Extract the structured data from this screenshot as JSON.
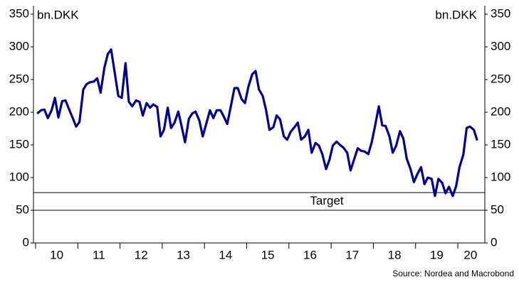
{
  "chart_data": {
    "type": "line",
    "y_label": "bn.DKK",
    "y2_label": "bn.DKK",
    "annotation": "Target",
    "reference_lines": [
      77,
      50
    ],
    "source": "Source: Nordea and Macrobond",
    "xlim": [
      2009.95,
      2020.64
    ],
    "xticks": [
      {
        "value": 2010.5,
        "label": "10"
      },
      {
        "value": 2011.5,
        "label": "11"
      },
      {
        "value": 2012.5,
        "label": "12"
      },
      {
        "value": 2013.5,
        "label": "13"
      },
      {
        "value": 2014.5,
        "label": "14"
      },
      {
        "value": 2015.5,
        "label": "15"
      },
      {
        "value": 2016.5,
        "label": "16"
      },
      {
        "value": 2017.5,
        "label": "17"
      },
      {
        "value": 2018.5,
        "label": "18"
      },
      {
        "value": 2019.5,
        "label": "19"
      },
      {
        "value": 2020.3,
        "label": "20"
      }
    ],
    "ylim": [
      0,
      350
    ],
    "yticks": [
      0,
      50,
      100,
      150,
      200,
      250,
      300,
      350
    ],
    "y2lim": [
      0,
      350
    ],
    "y2ticks": [
      0,
      50,
      100,
      150,
      200,
      250,
      300,
      350
    ],
    "grid": false,
    "x": [
      2010.04,
      2010.13,
      2010.21,
      2010.29,
      2010.38,
      2010.46,
      2010.54,
      2010.63,
      2010.71,
      2010.79,
      2010.88,
      2010.96,
      2011.04,
      2011.13,
      2011.21,
      2011.29,
      2011.38,
      2011.46,
      2011.54,
      2011.63,
      2011.71,
      2011.79,
      2011.88,
      2011.96,
      2012.04,
      2012.13,
      2012.21,
      2012.29,
      2012.38,
      2012.46,
      2012.54,
      2012.63,
      2012.71,
      2012.79,
      2012.88,
      2012.96,
      2013.04,
      2013.13,
      2013.21,
      2013.29,
      2013.38,
      2013.46,
      2013.54,
      2013.63,
      2013.71,
      2013.79,
      2013.88,
      2013.96,
      2014.04,
      2014.13,
      2014.21,
      2014.29,
      2014.38,
      2014.46,
      2014.54,
      2014.63,
      2014.71,
      2014.79,
      2014.88,
      2014.96,
      2015.04,
      2015.13,
      2015.21,
      2015.29,
      2015.38,
      2015.46,
      2015.54,
      2015.63,
      2015.71,
      2015.79,
      2015.88,
      2015.96,
      2016.04,
      2016.13,
      2016.21,
      2016.29,
      2016.38,
      2016.46,
      2016.54,
      2016.63,
      2016.71,
      2016.79,
      2016.88,
      2016.96,
      2017.04,
      2017.13,
      2017.21,
      2017.29,
      2017.38,
      2017.46,
      2017.54,
      2017.63,
      2017.71,
      2017.79,
      2017.88,
      2017.96,
      2018.04,
      2018.13,
      2018.21,
      2018.29,
      2018.38,
      2018.46,
      2018.54,
      2018.63,
      2018.71,
      2018.79,
      2018.88,
      2018.96,
      2019.04,
      2019.13,
      2019.21,
      2019.29,
      2019.38,
      2019.46,
      2019.54,
      2019.63,
      2019.71,
      2019.79,
      2019.88,
      2019.96,
      2020.04,
      2020.13,
      2020.21,
      2020.29,
      2020.38,
      2020.46
    ],
    "series": [
      {
        "color": "#00009a",
        "values": [
          198,
          203,
          204,
          191,
          203,
          222,
          192,
          217,
          218,
          205,
          191,
          178,
          185,
          235,
          243,
          246,
          247,
          252,
          230,
          268,
          289,
          296,
          258,
          225,
          222,
          275,
          216,
          209,
          218,
          216,
          195,
          214,
          207,
          212,
          208,
          163,
          173,
          207,
          176,
          184,
          201,
          178,
          154,
          190,
          198,
          201,
          187,
          163,
          182,
          203,
          191,
          203,
          203,
          193,
          182,
          211,
          237,
          237,
          220,
          214,
          239,
          258,
          263,
          235,
          225,
          203,
          173,
          177,
          195,
          189,
          163,
          158,
          170,
          177,
          184,
          158,
          163,
          173,
          138,
          153,
          149,
          136,
          113,
          127,
          149,
          155,
          150,
          146,
          138,
          111,
          127,
          145,
          141,
          140,
          136,
          154,
          179,
          209,
          180,
          179,
          163,
          138,
          149,
          171,
          160,
          129,
          113,
          93,
          105,
          116,
          90,
          100,
          98,
          72,
          98,
          92,
          76,
          86,
          72,
          87,
          116,
          135,
          176,
          178,
          173,
          157
        ]
      }
    ]
  }
}
